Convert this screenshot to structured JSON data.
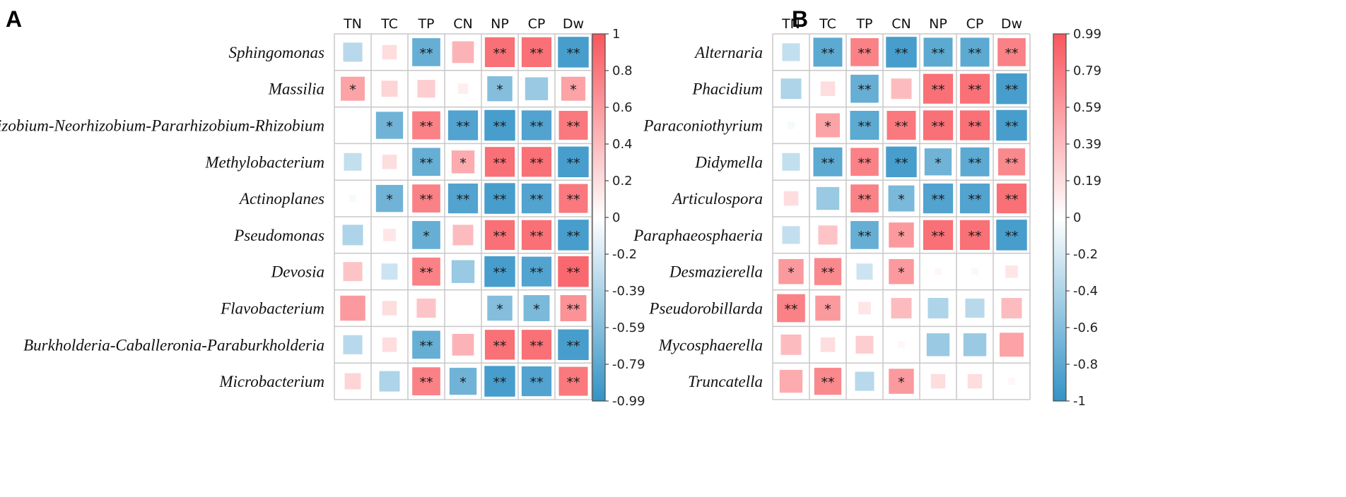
{
  "chart_data": [
    {
      "type": "heatmap",
      "panel": "A",
      "columns": [
        "TN",
        "TC",
        "TP",
        "CN",
        "NP",
        "CP",
        "Dw"
      ],
      "rows": [
        "Sphingomonas",
        "Massilia",
        "Allorhizobium-Neorhizobium-Pararhizobium-Rhizobium",
        "Methylobacterium",
        "Actinoplanes",
        "Pseudomonas",
        "Devosia",
        "Flavobacterium",
        "Burkholderia-Caballeronia-Paraburkholderia",
        "Microbacterium"
      ],
      "values": [
        [
          -0.35,
          0.2,
          -0.75,
          0.45,
          0.85,
          0.85,
          -0.9
        ],
        [
          0.55,
          0.25,
          0.3,
          0.1,
          -0.6,
          -0.5,
          0.55
        ],
        [
          0.0,
          -0.7,
          0.75,
          -0.85,
          -0.9,
          -0.85,
          0.8
        ],
        [
          -0.3,
          0.2,
          -0.75,
          0.5,
          0.85,
          0.85,
          -0.9
        ],
        [
          -0.05,
          -0.7,
          0.75,
          -0.85,
          -0.9,
          -0.85,
          0.8
        ],
        [
          -0.4,
          0.15,
          -0.75,
          0.4,
          0.85,
          0.85,
          -0.9
        ],
        [
          0.35,
          -0.25,
          0.75,
          -0.5,
          -0.9,
          -0.85,
          0.9
        ],
        [
          0.6,
          0.2,
          0.35,
          0.0,
          -0.6,
          -0.65,
          0.65
        ],
        [
          -0.35,
          0.2,
          -0.75,
          0.45,
          0.85,
          0.85,
          -0.9
        ],
        [
          0.25,
          -0.4,
          0.75,
          -0.7,
          -0.9,
          -0.85,
          0.8
        ]
      ],
      "significance": [
        [
          "",
          "",
          "**",
          "",
          "**",
          "**",
          "**"
        ],
        [
          "*",
          "",
          "",
          "",
          "*",
          "",
          "*"
        ],
        [
          "",
          "*",
          "**",
          "**",
          "**",
          "**",
          "**"
        ],
        [
          "",
          "",
          "**",
          "*",
          "**",
          "**",
          "**"
        ],
        [
          "",
          "*",
          "**",
          "**",
          "**",
          "**",
          "**"
        ],
        [
          "",
          "",
          "*",
          "",
          "**",
          "**",
          "**"
        ],
        [
          "",
          "",
          "**",
          "",
          "**",
          "**",
          "**"
        ],
        [
          "",
          "",
          "",
          "",
          "*",
          "*",
          "**"
        ],
        [
          "",
          "",
          "**",
          "",
          "**",
          "**",
          "**"
        ],
        [
          "",
          "",
          "**",
          "*",
          "**",
          "**",
          "**"
        ]
      ],
      "colorbar_range": [
        -0.99,
        1
      ],
      "colorbar_ticks": [
        "1",
        "0.8",
        "0.6",
        "0.4",
        "0.2",
        "0",
        "-0.2",
        "-0.39",
        "-0.59",
        "-0.79",
        "-0.99"
      ]
    },
    {
      "type": "heatmap",
      "panel": "B",
      "columns": [
        "TN",
        "TC",
        "TP",
        "CN",
        "NP",
        "CP",
        "Dw"
      ],
      "rows": [
        "Alternaria",
        "Phacidium",
        "Paraconiothyrium",
        "Didymella",
        "Articulospora",
        "Paraphaeosphaeria",
        "Desmazierella",
        "Pseudorobillarda",
        "Mycosphaerella",
        "Truncatella"
      ],
      "values": [
        [
          -0.3,
          -0.8,
          0.75,
          -0.9,
          -0.8,
          -0.8,
          0.75
        ],
        [
          -0.4,
          0.2,
          -0.75,
          0.4,
          0.85,
          0.85,
          -0.9
        ],
        [
          -0.05,
          0.55,
          -0.8,
          0.8,
          0.85,
          0.85,
          -0.9
        ],
        [
          -0.3,
          -0.8,
          0.75,
          -0.9,
          -0.7,
          -0.8,
          0.7
        ],
        [
          0.2,
          -0.5,
          0.75,
          -0.65,
          -0.85,
          -0.85,
          0.85
        ],
        [
          -0.3,
          0.35,
          -0.75,
          0.6,
          0.85,
          0.85,
          -0.9
        ],
        [
          0.6,
          0.7,
          -0.25,
          0.6,
          0.05,
          0.05,
          0.15
        ],
        [
          0.75,
          0.6,
          0.15,
          0.4,
          -0.4,
          -0.35,
          0.4
        ],
        [
          0.4,
          0.2,
          0.3,
          0.05,
          -0.5,
          -0.5,
          0.55
        ],
        [
          0.5,
          0.7,
          -0.35,
          0.6,
          0.2,
          0.2,
          0.05
        ]
      ],
      "significance": [
        [
          "",
          "**",
          "**",
          "**",
          "**",
          "**",
          "**"
        ],
        [
          "",
          "",
          "**",
          "",
          "**",
          "**",
          "**"
        ],
        [
          "",
          "*",
          "**",
          "**",
          "**",
          "**",
          "**"
        ],
        [
          "",
          "**",
          "**",
          "**",
          "*",
          "**",
          "**"
        ],
        [
          "",
          "",
          "**",
          "*",
          "**",
          "**",
          "**"
        ],
        [
          "",
          "",
          "**",
          "*",
          "**",
          "**",
          "**"
        ],
        [
          "*",
          "**",
          "",
          "*",
          "",
          "",
          ""
        ],
        [
          "**",
          "*",
          "",
          "",
          "",
          "",
          ""
        ],
        [
          "",
          "",
          "",
          "",
          "",
          "",
          ""
        ],
        [
          "",
          "**",
          "",
          "*",
          "",
          "",
          ""
        ]
      ],
      "colorbar_range": [
        -1,
        0.99
      ],
      "colorbar_ticks": [
        "0.99",
        "0.79",
        "0.59",
        "0.39",
        "0.19",
        "0",
        "-0.2",
        "-0.4",
        "-0.6",
        "-0.8",
        "-1"
      ]
    }
  ],
  "colors": {
    "positive": "#f8575e",
    "negative": "#3393c6",
    "neutral": "#ffffff",
    "grid": "#c8c8c8"
  }
}
